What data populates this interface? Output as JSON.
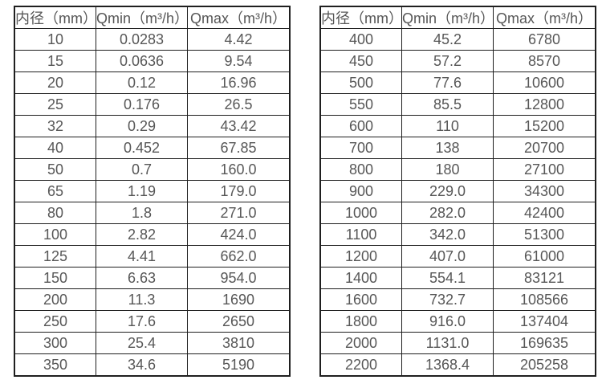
{
  "colors": {
    "background": "#ffffff",
    "border": "#1f1f1f",
    "text": "#575757"
  },
  "tables": [
    {
      "name": "small-diameter-flow-ranges",
      "headers": [
        "内径（mm）",
        "Qmin（m³/h）",
        "Qmax（m³/h）"
      ],
      "rows": [
        [
          "10",
          "0.0283",
          "4.42"
        ],
        [
          "15",
          "0.0636",
          "9.54"
        ],
        [
          "20",
          "0.12",
          "16.96"
        ],
        [
          "25",
          "0.176",
          "26.5"
        ],
        [
          "32",
          "0.29",
          "43.42"
        ],
        [
          "40",
          "0.452",
          "67.85"
        ],
        [
          "50",
          "0.7",
          "160.0"
        ],
        [
          "65",
          "1.19",
          "179.0"
        ],
        [
          "80",
          "1.8",
          "271.0"
        ],
        [
          "100",
          "2.82",
          "424.0"
        ],
        [
          "125",
          "4.41",
          "662.0"
        ],
        [
          "150",
          "6.63",
          "954.0"
        ],
        [
          "200",
          "11.3",
          "1690"
        ],
        [
          "250",
          "17.6",
          "2650"
        ],
        [
          "300",
          "25.4",
          "3810"
        ],
        [
          "350",
          "34.6",
          "5190"
        ]
      ]
    },
    {
      "name": "large-diameter-flow-ranges",
      "headers": [
        "内径（mm）",
        "Qmin（m³/h）",
        "Qmax（m³/h）"
      ],
      "rows": [
        [
          "400",
          "45.2",
          "6780"
        ],
        [
          "450",
          "57.2",
          "8570"
        ],
        [
          "500",
          "77.6",
          "10600"
        ],
        [
          "550",
          "85.5",
          "12800"
        ],
        [
          "600",
          "110",
          "15200"
        ],
        [
          "700",
          "138",
          "20700"
        ],
        [
          "800",
          "180",
          "27100"
        ],
        [
          "900",
          "229.0",
          "34300"
        ],
        [
          "1000",
          "282.0",
          "42400"
        ],
        [
          "1100",
          "342.0",
          "51300"
        ],
        [
          "1200",
          "407.0",
          "61000"
        ],
        [
          "1400",
          "554.1",
          "83121"
        ],
        [
          "1600",
          "732.7",
          "108566"
        ],
        [
          "1800",
          "916.0",
          "137404"
        ],
        [
          "2000",
          "1131.0",
          "169635"
        ],
        [
          "2200",
          "1368.4",
          "205258"
        ]
      ]
    }
  ]
}
